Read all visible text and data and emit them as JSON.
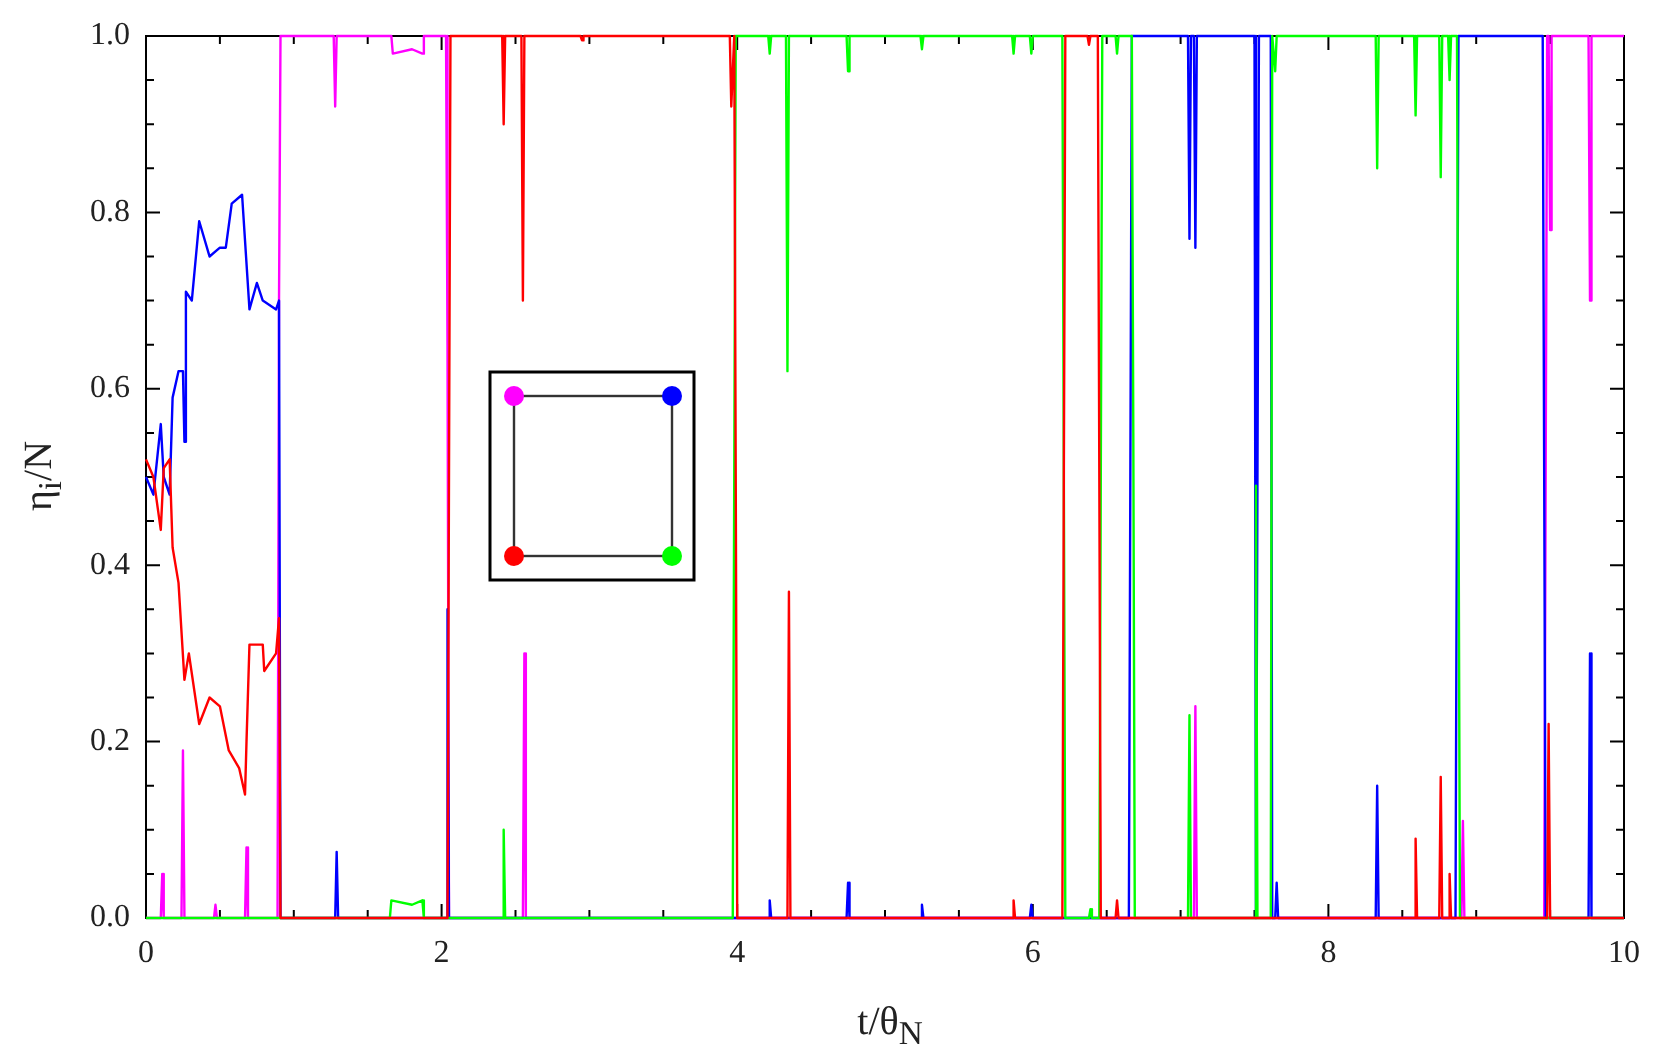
{
  "chart_data": {
    "type": "line",
    "xlabel": "t/θ$_{N}$",
    "ylabel": "η$_{i}$/N",
    "xlim": [
      0,
      10
    ],
    "ylim": [
      0,
      1
    ],
    "xticks": [
      0,
      {
        "value": 0.5,
        "label": null
      },
      {
        "value": 1,
        "label": null
      },
      {
        "value": 1.5,
        "label": null
      },
      2,
      {
        "value": 2.5,
        "label": null
      },
      {
        "value": 3,
        "label": null
      },
      {
        "value": 3.5,
        "label": null
      },
      4,
      {
        "value": 4.5,
        "label": null
      },
      {
        "value": 5,
        "label": null
      },
      {
        "value": 5.5,
        "label": null
      },
      6,
      {
        "value": 6.5,
        "label": null
      },
      {
        "value": 7,
        "label": null
      },
      {
        "value": 7.5,
        "label": null
      },
      8,
      {
        "value": 8.5,
        "label": null
      },
      {
        "value": 9,
        "label": null
      },
      {
        "value": 9.5,
        "label": null
      },
      10
    ],
    "yticks": [
      {
        "value": 0,
        "label": "0.0"
      },
      {
        "value": 0.05,
        "label": null
      },
      {
        "value": 0.1,
        "label": null
      },
      {
        "value": 0.15,
        "label": null
      },
      {
        "value": 0.2,
        "label": "0.2"
      },
      {
        "value": 0.25,
        "label": null
      },
      {
        "value": 0.3,
        "label": null
      },
      {
        "value": 0.35,
        "label": null
      },
      {
        "value": 0.4,
        "label": "0.4"
      },
      {
        "value": 0.45,
        "label": null
      },
      {
        "value": 0.5,
        "label": null
      },
      {
        "value": 0.55,
        "label": null
      },
      {
        "value": 0.6,
        "label": "0.6"
      },
      {
        "value": 0.65,
        "label": null
      },
      {
        "value": 0.7,
        "label": null
      },
      {
        "value": 0.75,
        "label": null
      },
      {
        "value": 0.8,
        "label": "0.8"
      },
      {
        "value": 0.85,
        "label": null
      },
      {
        "value": 0.9,
        "label": null
      },
      {
        "value": 0.95,
        "label": null
      },
      {
        "value": 1,
        "label": "1.0"
      }
    ],
    "series": [
      {
        "color": "#ff0000",
        "x": [
          0,
          0.05,
          0.1,
          0.12,
          0.16,
          0.18,
          0.22,
          0.26,
          0.29,
          0.36,
          0.43,
          0.5,
          0.56,
          0.63,
          0.67,
          0.68,
          0.7,
          0.79,
          0.8,
          0.88,
          0.9,
          0.91,
          2.04,
          2.06,
          2.41,
          2.42,
          2.43,
          2.54,
          2.55,
          2.56,
          2.94,
          2.95,
          2.96,
          3.95,
          3.96,
          3.98,
          4.0,
          4.34,
          4.35,
          4.36,
          5.86,
          5.87,
          5.88,
          6.2,
          6.22,
          6.37,
          6.38,
          6.39,
          6.44,
          6.46,
          6.56,
          6.57,
          6.58,
          8.58,
          8.59,
          8.6,
          8.75,
          8.76,
          8.77,
          8.81,
          8.82,
          8.83,
          9.48,
          9.49,
          9.5,
          10
        ],
        "values": [
          0.52,
          0.5,
          0.44,
          0.51,
          0.52,
          0.42,
          0.38,
          0.27,
          0.3,
          0.22,
          0.25,
          0.24,
          0.19,
          0.17,
          0.14,
          0.2,
          0.31,
          0.31,
          0.28,
          0.3,
          0.34,
          0,
          0,
          1,
          1,
          0.9,
          1,
          1,
          0.7,
          1,
          1,
          0.995,
          1,
          1,
          0.92,
          1,
          0,
          0,
          0.37,
          0,
          0,
          0.02,
          0,
          0,
          1,
          1,
          0.99,
          1,
          1,
          0,
          0,
          0.02,
          0,
          0,
          0.09,
          0,
          0,
          0.16,
          0,
          0,
          0.05,
          0,
          0,
          0.22,
          0,
          0
        ]
      },
      {
        "color": "#00ff00",
        "x": [
          0,
          1.65,
          1.66,
          1.8,
          1.87,
          1.88,
          2.41,
          2.42,
          2.43,
          3.97,
          3.99,
          4.21,
          4.22,
          4.23,
          4.33,
          4.34,
          4.35,
          4.74,
          4.75,
          4.76,
          5.24,
          5.25,
          5.26,
          5.86,
          5.87,
          5.88,
          5.98,
          5.99,
          6.0,
          6.2,
          6.22,
          6.38,
          6.39,
          6.4,
          6.45,
          6.47,
          6.56,
          6.57,
          6.58,
          6.67,
          6.68,
          6.69,
          7.05,
          7.06,
          7.07,
          7.5,
          7.51,
          7.52,
          7.61,
          7.62,
          7.63,
          7.64,
          7.65,
          8.32,
          8.33,
          8.34,
          8.58,
          8.59,
          8.6,
          8.75,
          8.76,
          8.77,
          8.81,
          8.82,
          8.83,
          8.87,
          8.89,
          10
        ],
        "values": [
          0,
          0,
          0.02,
          0.015,
          0.02,
          0,
          0,
          0.1,
          0,
          0,
          1,
          1,
          0.98,
          1,
          1,
          0.62,
          1,
          1,
          0.96,
          1,
          1,
          0.985,
          1,
          1,
          0.98,
          1,
          1,
          0.98,
          1,
          1,
          0,
          0,
          0.01,
          0,
          0,
          1,
          1,
          0.98,
          1,
          1,
          0.55,
          0,
          0,
          0.23,
          0,
          0,
          0.49,
          0,
          0,
          1,
          1,
          0.96,
          1,
          1,
          0.85,
          1,
          1,
          0.91,
          1,
          1,
          0.84,
          1,
          1,
          0.95,
          1,
          1,
          0,
          0
        ]
      },
      {
        "color": "#0000ff",
        "x": [
          0,
          0.05,
          0.1,
          0.12,
          0.16,
          0.18,
          0.22,
          0.25,
          0.26,
          0.27,
          0.31,
          0.36,
          0.43,
          0.5,
          0.54,
          0.58,
          0.65,
          0.7,
          0.75,
          0.79,
          0.88,
          0.9,
          0.91,
          1.28,
          1.29,
          1.3,
          2.03,
          2.04,
          2.05,
          4.21,
          4.22,
          4.23,
          4.74,
          4.75,
          4.76,
          5.24,
          5.25,
          5.26,
          5.98,
          5.99,
          6.0,
          6.65,
          6.67,
          7.05,
          7.06,
          7.07,
          7.09,
          7.1,
          7.11,
          7.5,
          7.51,
          7.53,
          7.61,
          7.62,
          7.64,
          7.65,
          7.66,
          8.32,
          8.33,
          8.34,
          8.86,
          8.88,
          9.45,
          9.47,
          9.76,
          9.77,
          9.78,
          10
        ],
        "values": [
          0.5,
          0.48,
          0.56,
          0.5,
          0.48,
          0.59,
          0.62,
          0.62,
          0.54,
          0.71,
          0.7,
          0.79,
          0.75,
          0.76,
          0.76,
          0.81,
          0.82,
          0.69,
          0.72,
          0.7,
          0.69,
          0.7,
          0,
          0,
          0.075,
          0,
          0,
          0.35,
          0,
          0,
          0.02,
          0,
          0,
          0.04,
          0,
          0,
          0.015,
          0,
          0,
          0.015,
          0,
          0,
          1,
          1,
          0.77,
          1,
          1,
          0.76,
          1,
          1,
          0,
          1,
          1,
          0,
          0,
          0.04,
          0,
          0,
          0.15,
          0,
          0,
          1,
          1,
          0,
          0,
          0.3,
          0,
          0
        ]
      },
      {
        "color": "#ff00ff",
        "x": [
          0,
          0.1,
          0.11,
          0.12,
          0.24,
          0.25,
          0.26,
          0.46,
          0.47,
          0.48,
          0.67,
          0.68,
          0.69,
          0.89,
          0.9,
          0.91,
          1.27,
          1.28,
          1.29,
          1.66,
          1.67,
          1.8,
          1.87,
          1.88,
          2.03,
          2.04,
          2.05,
          2.55,
          2.56,
          2.57,
          7.09,
          7.1,
          7.11,
          8.9,
          8.91,
          8.92,
          9.46,
          9.48,
          9.49,
          9.5,
          9.51,
          9.76,
          9.77,
          9.78,
          10
        ],
        "values": [
          0,
          0,
          0.05,
          0,
          0,
          0.19,
          0,
          0,
          0.015,
          0,
          0,
          0.08,
          0,
          0,
          0.7,
          1,
          1,
          0.92,
          1,
          1,
          0.98,
          0.985,
          0.98,
          1,
          1,
          0.65,
          0,
          0,
          0.3,
          0,
          0,
          0.24,
          0,
          0,
          0.11,
          0,
          0,
          1,
          1,
          0.78,
          1,
          1,
          0.7,
          1,
          1
        ]
      }
    ]
  }
}
